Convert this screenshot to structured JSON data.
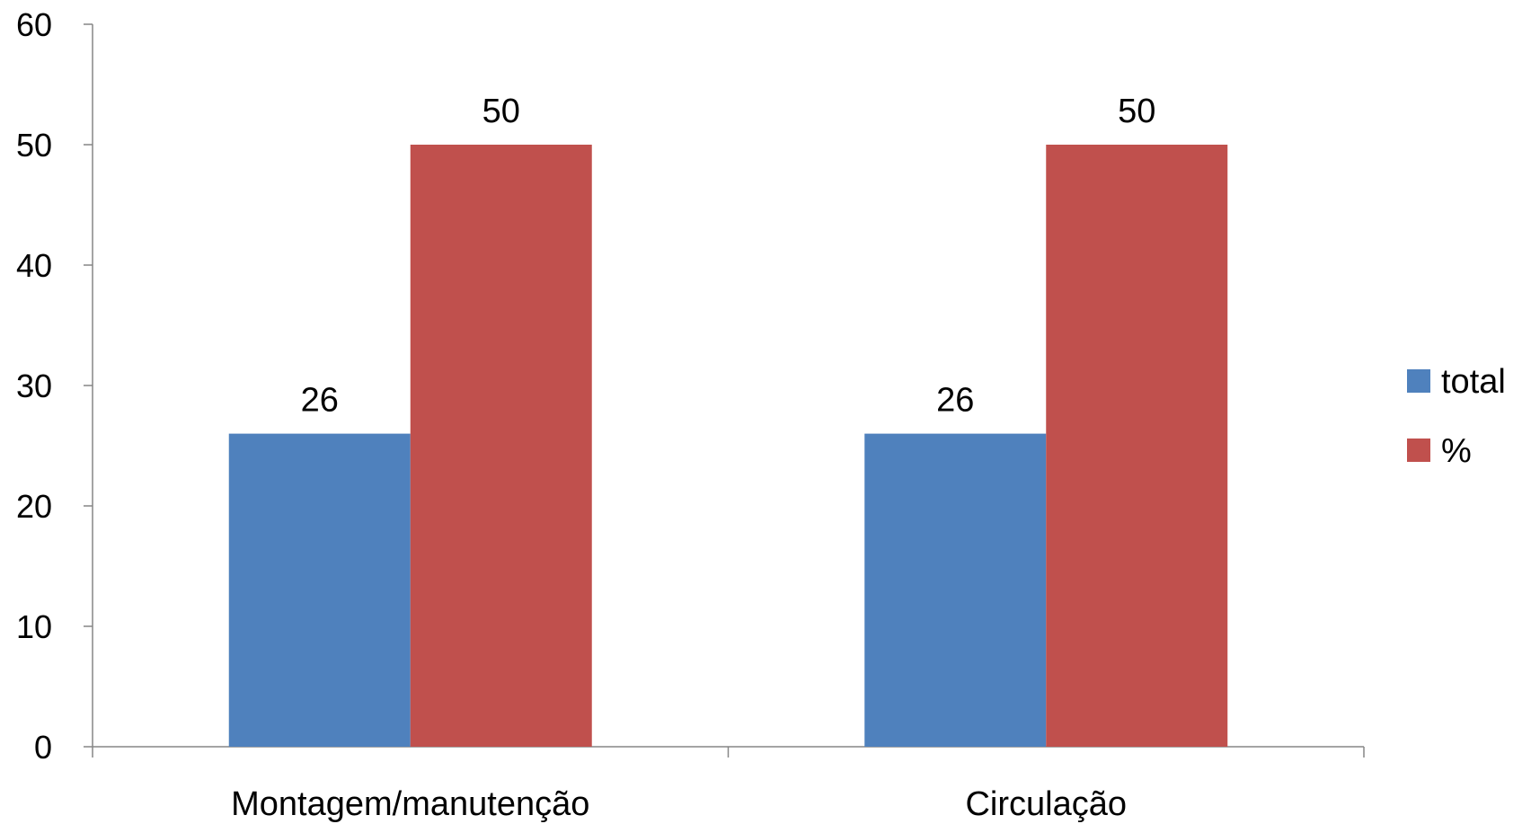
{
  "chart_data": {
    "type": "bar",
    "title": "",
    "xlabel": "",
    "ylabel": "",
    "categories": [
      "Montagem/manutenção",
      "Circulação"
    ],
    "series": [
      {
        "name": "total",
        "values": [
          26,
          26
        ],
        "color": "#4F81BD"
      },
      {
        "name": "%",
        "values": [
          50,
          50
        ],
        "color": "#C0504D"
      }
    ],
    "ylim": [
      0,
      60
    ],
    "yticks": [
      0,
      10,
      20,
      30,
      40,
      50,
      60
    ],
    "grid": false,
    "legend": "right",
    "data_labels": true
  }
}
